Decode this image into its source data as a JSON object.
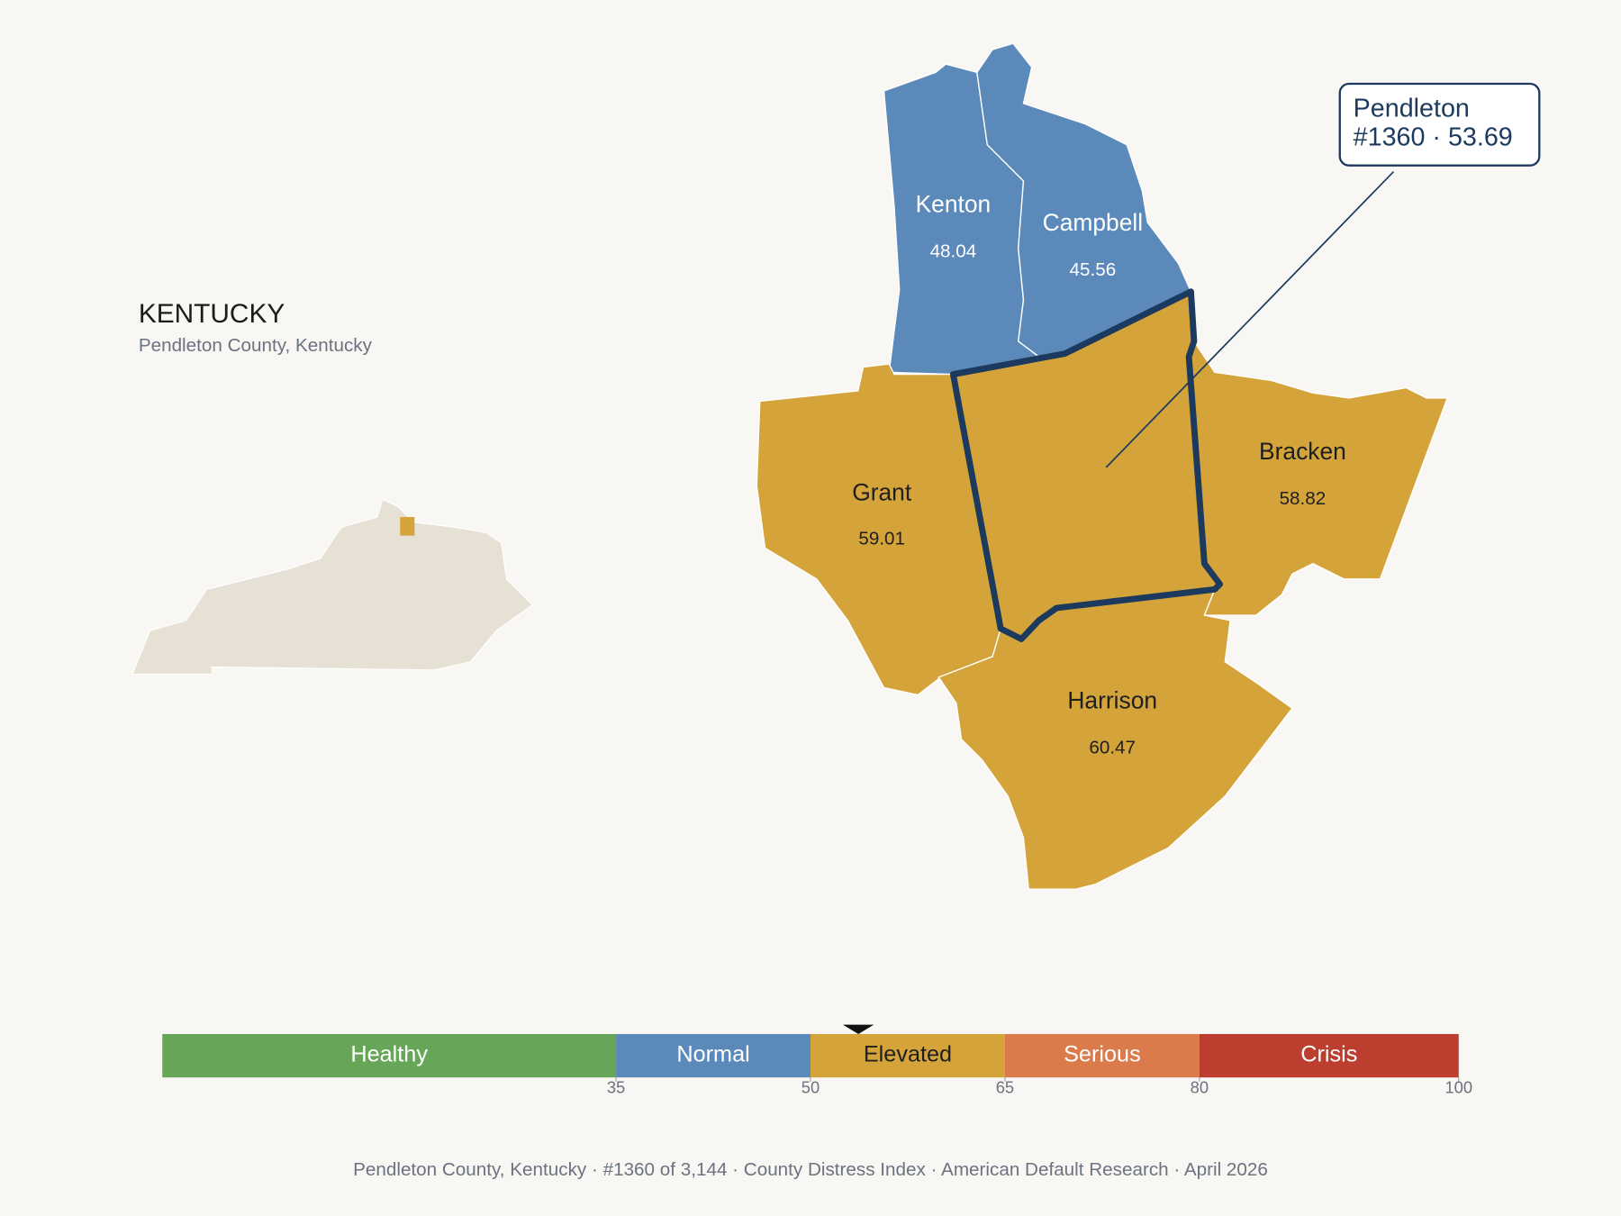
{
  "header": {
    "title": "KENTUCKY",
    "subtitle": "Pendleton County, Kentucky"
  },
  "counties": [
    {
      "name": "Kenton",
      "value": 48.04
    },
    {
      "name": "Campbell",
      "value": 45.56
    },
    {
      "name": "Grant",
      "value": 59.01
    },
    {
      "name": "Bracken",
      "value": 58.82
    },
    {
      "name": "Harrison",
      "value": 60.47
    }
  ],
  "focus": {
    "name": "Pendleton",
    "line": "#1360 · 53.69",
    "value": 53.69
  },
  "scale": {
    "xlim": [
      0,
      100
    ],
    "xticks": [
      35,
      50,
      65,
      80,
      100
    ],
    "bands": [
      {
        "name": "Healthy",
        "end": 35,
        "color": "#67a659",
        "label_color": "#ffffff"
      },
      {
        "name": "Normal",
        "end": 50,
        "color": "#5b8aba",
        "label_color": "#ffffff"
      },
      {
        "name": "Elevated",
        "end": 65,
        "color": "#d4a43a",
        "label_color": "#1f1f1f"
      },
      {
        "name": "Serious",
        "end": 80,
        "color": "#db7a4a",
        "label_color": "#ffffff"
      },
      {
        "name": "Crisis",
        "end": 100,
        "color": "#bb3e2e",
        "label_color": "#ffffff"
      }
    ]
  },
  "footer": "Pendleton County, Kentucky  ·  #1360 of 3,144  ·  County Distress Index  ·  American Default Research  ·  April 2026"
}
